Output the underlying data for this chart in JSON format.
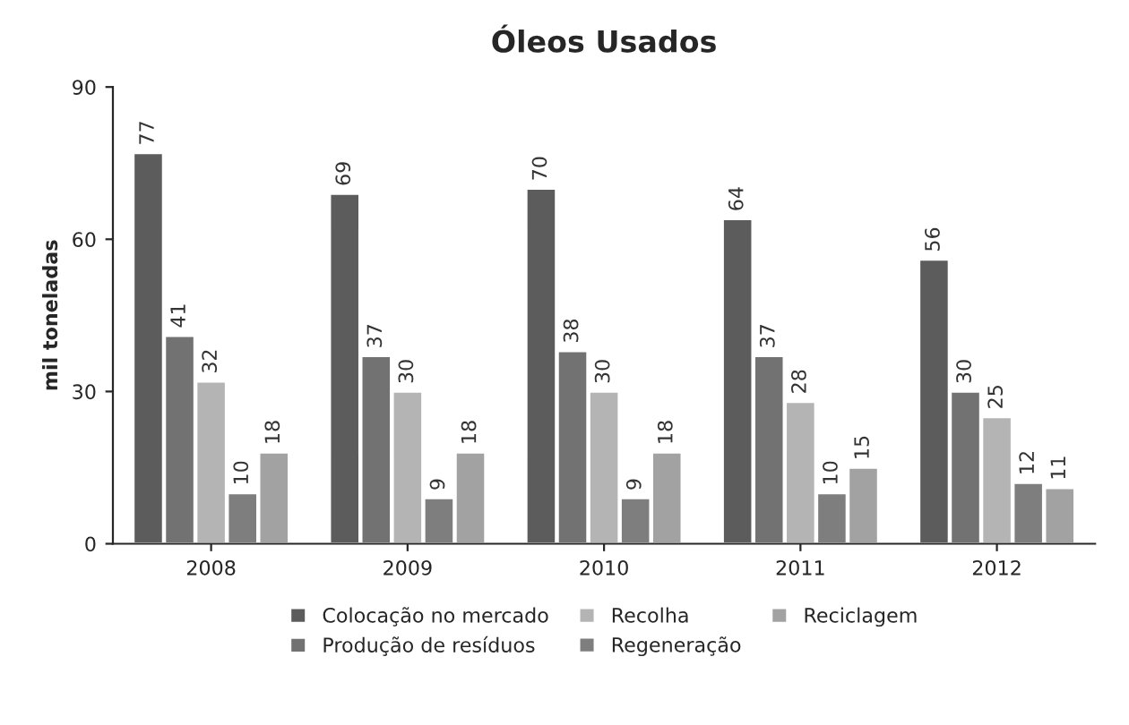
{
  "chart_data": {
    "type": "bar",
    "title": "Óleos Usados",
    "ylabel": "mil toneladas",
    "categories": [
      "2008",
      "2009",
      "2010",
      "2011",
      "2012"
    ],
    "series": [
      {
        "name": "Colocação no mercado",
        "color": "#5c5c5c",
        "values": [
          77,
          69,
          70,
          64,
          56
        ]
      },
      {
        "name": "Produção de resíduos",
        "color": "#727272",
        "values": [
          41,
          37,
          38,
          37,
          30
        ]
      },
      {
        "name": "Recolha",
        "color": "#b4b4b4",
        "values": [
          32,
          30,
          30,
          28,
          25
        ]
      },
      {
        "name": "Regeneração",
        "color": "#7e7e7e",
        "values": [
          10,
          9,
          9,
          10,
          12
        ]
      },
      {
        "name": "Reciclagem",
        "color": "#a2a2a2",
        "values": [
          18,
          18,
          18,
          15,
          11
        ]
      }
    ],
    "ylim": [
      0,
      90
    ],
    "yticks": [
      0,
      30,
      60,
      90
    ],
    "grid": false,
    "legend": "bottom",
    "data_labels": true
  }
}
